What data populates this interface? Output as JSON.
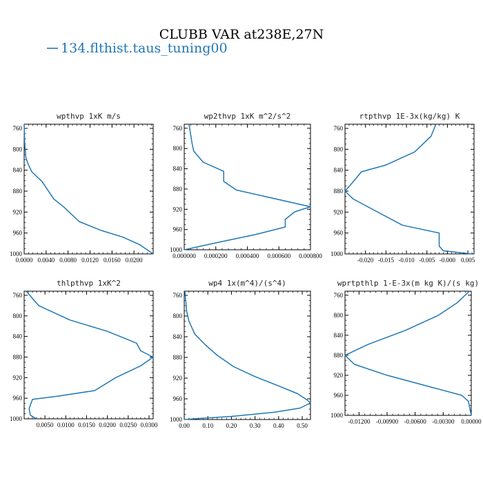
{
  "figure": {
    "title": "CLUBB VAR at238E,27N",
    "legend_label": "134.flthist.taus_tuning00",
    "line_color": "#1f77b4"
  },
  "chart_data": [
    {
      "type": "line",
      "title": "wpthvp  1xK m/s",
      "xlim": [
        0.0,
        0.0235
      ],
      "ylim": [
        1000,
        752
      ],
      "x_ticks": [
        0.0,
        0.004,
        0.008,
        0.012,
        0.016,
        0.02
      ],
      "x_tick_labels": [
        "0.0000",
        "0.0040",
        "0.0080",
        "0.0120",
        "0.0160",
        "0.0200"
      ],
      "y_ticks": [
        760,
        800,
        840,
        880,
        920,
        960,
        1000
      ],
      "series": [
        {
          "x": [
            0.0,
            0.0001,
            0.0003,
            0.0007,
            0.0014,
            0.0032,
            0.0054,
            0.0072,
            0.01,
            0.014,
            0.018,
            0.021,
            0.0235
          ],
          "y": [
            752,
            790,
            815,
            828,
            843,
            861,
            895,
            910,
            938,
            955,
            968,
            982,
            1000
          ]
        }
      ]
    },
    {
      "type": "line",
      "title": "wp2thvp  1xK m^2/s^2",
      "xlim": [
        0.0,
        0.0008
      ],
      "ylim": [
        1000,
        752
      ],
      "x_ticks": [
        0.0,
        0.0002,
        0.0004,
        0.0006,
        0.0008
      ],
      "x_tick_labels": [
        "0.000000",
        "0.000200",
        "0.000400",
        "0.000600",
        "0.000800"
      ],
      "y_ticks": [
        760,
        800,
        840,
        880,
        920,
        960,
        1000
      ],
      "series": [
        {
          "x": [
            3e-05,
            5e-05,
            6e-05,
            0.00012,
            0.00025,
            0.00025,
            0.00033,
            0.0008,
            0.0007,
            0.00064,
            0.00064,
            0.00045,
            0.00022,
            0.0
          ],
          "y": [
            752,
            790,
            805,
            827,
            845,
            865,
            882,
            915,
            925,
            940,
            955,
            970,
            985,
            1000
          ]
        }
      ]
    },
    {
      "type": "line",
      "title": "rtpthvp  1E-3x(kg/kg) K",
      "xlim": [
        -0.025,
        0.0065
      ],
      "ylim": [
        1000,
        752
      ],
      "x_ticks": [
        -0.02,
        -0.015,
        -0.01,
        -0.005,
        0.0,
        0.005
      ],
      "x_tick_labels": [
        "-0.020",
        "-0.015",
        "-0.010",
        "-0.005",
        "-0.000",
        "0.005"
      ],
      "y_ticks": [
        760,
        800,
        840,
        880,
        920,
        960,
        1000
      ],
      "series": [
        {
          "x": [
            -0.0028,
            -0.004,
            -0.008,
            -0.015,
            -0.021,
            -0.023,
            -0.025,
            -0.023,
            -0.017,
            -0.011,
            -0.002,
            -0.002,
            -0.001,
            0.006
          ],
          "y": [
            752,
            775,
            805,
            830,
            843,
            862,
            880,
            895,
            920,
            945,
            960,
            985,
            994,
            1000
          ]
        }
      ]
    },
    {
      "type": "line",
      "title": "thlpthvp  1xK^2",
      "xlim": [
        0.0,
        0.031
      ],
      "ylim": [
        1000,
        752
      ],
      "x_ticks": [
        0.005,
        0.01,
        0.015,
        0.02,
        0.025,
        0.03
      ],
      "x_tick_labels": [
        "0.0050",
        "0.0100",
        "0.0150",
        "0.0200",
        "0.0250",
        "0.0300"
      ],
      "y_ticks": [
        760,
        800,
        840,
        880,
        920,
        960,
        1000
      ],
      "series": [
        {
          "x": [
            0.0005,
            0.0035,
            0.011,
            0.02,
            0.027,
            0.028,
            0.031,
            0.028,
            0.022,
            0.017,
            0.008,
            0.002,
            0.0012,
            0.0015,
            0.003
          ],
          "y": [
            752,
            780,
            808,
            830,
            853,
            868,
            880,
            897,
            920,
            945,
            956,
            962,
            980,
            993,
            1000
          ]
        }
      ]
    },
    {
      "type": "line",
      "title": "wp4  1x(m^4)/(s^4)",
      "xlim": [
        0.0,
        0.535
      ],
      "ylim": [
        1000,
        752
      ],
      "x_ticks": [
        0.0,
        0.1,
        0.2,
        0.3,
        0.4,
        0.5
      ],
      "x_tick_labels": [
        "0.00",
        "0.10",
        "0.20",
        "0.30",
        "0.40",
        "0.50"
      ],
      "y_ticks": [
        760,
        800,
        840,
        880,
        920,
        960,
        1000
      ],
      "series": [
        {
          "x": [
            0.003,
            0.01,
            0.02,
            0.045,
            0.09,
            0.14,
            0.21,
            0.3,
            0.4,
            0.48,
            0.52,
            0.535,
            0.49,
            0.38,
            0.2,
            0.06,
            0.0
          ],
          "y": [
            752,
            790,
            810,
            835,
            856,
            876,
            898,
            917,
            935,
            950,
            962,
            968,
            978,
            986,
            994,
            998,
            1000
          ]
        }
      ]
    },
    {
      "type": "line",
      "title": "wprtpthlp  1-E-3x(m kg K)/(s kg)",
      "xlim": [
        -0.0135,
        0.0
      ],
      "ylim": [
        1000,
        752
      ],
      "x_ticks": [
        -0.012,
        -0.009,
        -0.006,
        -0.003,
        0.0
      ],
      "x_tick_labels": [
        "-0.01200",
        "-0.00900",
        "-0.00600",
        "-0.00300",
        "0.00000"
      ],
      "y_ticks": [
        760,
        800,
        840,
        880,
        920,
        960,
        1000
      ],
      "series": [
        {
          "x": [
            -0.0002,
            -0.0015,
            -0.0035,
            -0.007,
            -0.011,
            -0.0135,
            -0.0125,
            -0.009,
            -0.004,
            -0.001,
            -0.0003,
            0.0
          ],
          "y": [
            752,
            775,
            800,
            830,
            858,
            880,
            898,
            920,
            945,
            960,
            972,
            1000
          ]
        }
      ]
    }
  ]
}
